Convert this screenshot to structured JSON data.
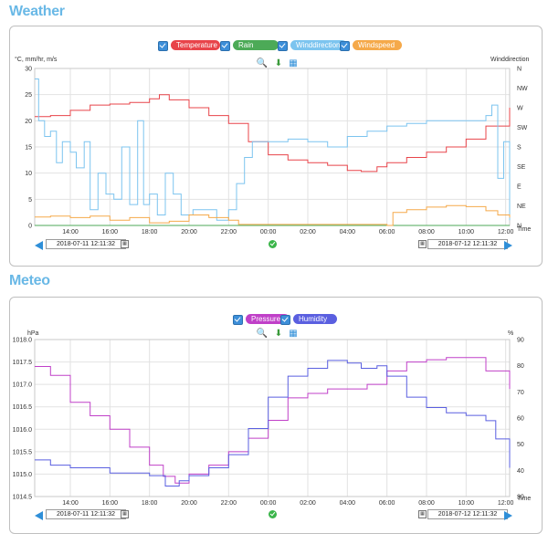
{
  "weather": {
    "section_title": "Weather",
    "legend": [
      {
        "label": "Temperature",
        "color": "#e8444a"
      },
      {
        "label": "Rain",
        "color": "#4caa57"
      },
      {
        "label": "Winddirection",
        "color": "#7cc4ef"
      },
      {
        "label": "Windspeed",
        "color": "#f5a94a"
      }
    ],
    "left_axis_caption": "°C, mm/hr, m/s",
    "right_axis_caption": "Winddirection",
    "x_axis_caption": "Time",
    "start_date": "2018-07-11 12:11:32",
    "end_date": "2018-07-12 12:11:32"
  },
  "meteo": {
    "section_title": "Meteo",
    "legend": [
      {
        "label": "Pressure",
        "color": "#c040c8"
      },
      {
        "label": "Humidity",
        "color": "#5a5fe0"
      }
    ],
    "left_axis_caption": "hPa",
    "right_axis_caption": "%",
    "x_axis_caption": "Time",
    "start_date": "2018-07-11 12:11:32",
    "end_date": "2018-07-12 12:11:32"
  },
  "chart_data": [
    {
      "type": "line",
      "title": "Weather",
      "xlabel": "Time",
      "ylabel": "°C, mm/hr, m/s",
      "y2label": "Winddirection",
      "x_ticks": [
        "14:00",
        "16:00",
        "18:00",
        "20:00",
        "22:00",
        "00:00",
        "02:00",
        "04:00",
        "06:00",
        "08:00",
        "10:00",
        "12:00"
      ],
      "x_range_hours": [
        12.2,
        36.2
      ],
      "ylim": [
        0,
        30
      ],
      "y_ticks": [
        0,
        5,
        10,
        15,
        20,
        25,
        30
      ],
      "y2_ticks": [
        "N",
        "NE",
        "E",
        "SE",
        "S",
        "SW",
        "W",
        "NW",
        "N"
      ],
      "grid": true,
      "legend_position": "top-center",
      "series": [
        {
          "name": "Temperature",
          "color": "#e8444a",
          "axis": "left",
          "points": [
            [
              12.2,
              20.8
            ],
            [
              13,
              21
            ],
            [
              14,
              22
            ],
            [
              15,
              23
            ],
            [
              16,
              23.2
            ],
            [
              17,
              23.5
            ],
            [
              18,
              24.2
            ],
            [
              18.5,
              25
            ],
            [
              19,
              24
            ],
            [
              20,
              22.5
            ],
            [
              21,
              21
            ],
            [
              22,
              19.5
            ],
            [
              23,
              16
            ],
            [
              24,
              13.5
            ],
            [
              25,
              12.5
            ],
            [
              26,
              12
            ],
            [
              27,
              11.5
            ],
            [
              28,
              10.5
            ],
            [
              28.7,
              10.3
            ],
            [
              29.5,
              11.2
            ],
            [
              30,
              12
            ],
            [
              31,
              13
            ],
            [
              32,
              14
            ],
            [
              33,
              15
            ],
            [
              34,
              16.5
            ],
            [
              35,
              19
            ],
            [
              36.2,
              22.5
            ]
          ]
        },
        {
          "name": "Rain",
          "color": "#4caa57",
          "axis": "left",
          "points": [
            [
              12.2,
              0
            ],
            [
              36.2,
              0
            ]
          ]
        },
        {
          "name": "Winddirection",
          "color": "#7cc4ef",
          "axis": "left",
          "points": [
            [
              12.2,
              28
            ],
            [
              12.4,
              20
            ],
            [
              12.7,
              17
            ],
            [
              13,
              18
            ],
            [
              13.3,
              12
            ],
            [
              13.6,
              16
            ],
            [
              14,
              14
            ],
            [
              14.3,
              11
            ],
            [
              14.7,
              16
            ],
            [
              15,
              3
            ],
            [
              15.4,
              10
            ],
            [
              15.8,
              6
            ],
            [
              16.2,
              5
            ],
            [
              16.6,
              15
            ],
            [
              17,
              4
            ],
            [
              17.4,
              20
            ],
            [
              17.7,
              4
            ],
            [
              18,
              6
            ],
            [
              18.4,
              2
            ],
            [
              18.8,
              10
            ],
            [
              19.2,
              6
            ],
            [
              19.6,
              2
            ],
            [
              20.2,
              3
            ],
            [
              21,
              3
            ],
            [
              21.4,
              1
            ],
            [
              22,
              3
            ],
            [
              22.4,
              8
            ],
            [
              22.8,
              13
            ],
            [
              23.2,
              16
            ],
            [
              24,
              16
            ],
            [
              25,
              16.5
            ],
            [
              26,
              16
            ],
            [
              27,
              15
            ],
            [
              28,
              17
            ],
            [
              29,
              18
            ],
            [
              30,
              19
            ],
            [
              31,
              19.5
            ],
            [
              32,
              20
            ],
            [
              33,
              20
            ],
            [
              34,
              20
            ],
            [
              35,
              21
            ],
            [
              35.3,
              23
            ],
            [
              35.6,
              9
            ],
            [
              35.9,
              16
            ],
            [
              36.2,
              1
            ]
          ]
        },
        {
          "name": "Windspeed",
          "color": "#f5a94a",
          "axis": "left",
          "points": [
            [
              12.2,
              1.6
            ],
            [
              13,
              1.8
            ],
            [
              14,
              1.5
            ],
            [
              15,
              1.8
            ],
            [
              16,
              1
            ],
            [
              17,
              1.5
            ],
            [
              18,
              0.5
            ],
            [
              19,
              0.8
            ],
            [
              20,
              2
            ],
            [
              21,
              1.5
            ],
            [
              22,
              1
            ],
            [
              22.5,
              0.2
            ],
            [
              30,
              0
            ],
            [
              30.3,
              2.5
            ],
            [
              31,
              3
            ],
            [
              32,
              3.5
            ],
            [
              33,
              3.8
            ],
            [
              34,
              3.6
            ],
            [
              35,
              2.8
            ],
            [
              35.6,
              2
            ],
            [
              36.2,
              1.5
            ]
          ]
        }
      ]
    },
    {
      "type": "line",
      "title": "Meteo",
      "xlabel": "Time",
      "ylabel": "hPa",
      "y2label": "%",
      "x_ticks": [
        "14:00",
        "16:00",
        "18:00",
        "20:00",
        "22:00",
        "00:00",
        "02:00",
        "04:00",
        "06:00",
        "08:00",
        "10:00",
        "12:00"
      ],
      "x_range_hours": [
        12.2,
        36.2
      ],
      "ylim": [
        1014.5,
        1018.0
      ],
      "y_ticks": [
        1014.5,
        1015.0,
        1015.5,
        1016.0,
        1016.5,
        1017.0,
        1017.5,
        1018.0
      ],
      "y2lim": [
        30,
        90
      ],
      "y2_ticks": [
        30,
        40,
        50,
        60,
        70,
        80,
        90
      ],
      "grid": true,
      "legend_position": "top-center",
      "series": [
        {
          "name": "Pressure",
          "color": "#c040c8",
          "axis": "left",
          "points": [
            [
              12.2,
              1017.4
            ],
            [
              13,
              1017.2
            ],
            [
              14,
              1016.6
            ],
            [
              15,
              1016.3
            ],
            [
              16,
              1016.0
            ],
            [
              17,
              1015.6
            ],
            [
              18,
              1015.2
            ],
            [
              18.7,
              1014.95
            ],
            [
              19.3,
              1014.8
            ],
            [
              20,
              1015.0
            ],
            [
              21,
              1015.2
            ],
            [
              22,
              1015.5
            ],
            [
              23,
              1015.8
            ],
            [
              24,
              1016.2
            ],
            [
              25,
              1016.7
            ],
            [
              26,
              1016.8
            ],
            [
              27,
              1016.9
            ],
            [
              28,
              1016.9
            ],
            [
              29,
              1017.0
            ],
            [
              30,
              1017.3
            ],
            [
              31,
              1017.5
            ],
            [
              32,
              1017.55
            ],
            [
              33,
              1017.6
            ],
            [
              34,
              1017.6
            ],
            [
              35,
              1017.3
            ],
            [
              36.2,
              1016.9
            ]
          ]
        },
        {
          "name": "Humidity",
          "color": "#5a5fe0",
          "axis": "right",
          "points": [
            [
              12.2,
              44
            ],
            [
              13,
              42
            ],
            [
              14,
              41
            ],
            [
              15,
              41
            ],
            [
              16,
              39
            ],
            [
              17,
              39
            ],
            [
              18,
              38
            ],
            [
              18.8,
              34
            ],
            [
              19.5,
              36
            ],
            [
              20,
              38
            ],
            [
              21,
              41
            ],
            [
              22,
              46
            ],
            [
              23,
              56
            ],
            [
              24,
              68
            ],
            [
              25,
              76
            ],
            [
              26,
              79
            ],
            [
              27,
              82
            ],
            [
              28,
              81
            ],
            [
              28.7,
              79
            ],
            [
              29.5,
              80
            ],
            [
              30,
              76
            ],
            [
              31,
              68
            ],
            [
              32,
              64
            ],
            [
              33,
              62
            ],
            [
              34,
              61
            ],
            [
              35,
              59
            ],
            [
              35.5,
              52
            ],
            [
              36.2,
              41
            ]
          ]
        }
      ]
    }
  ]
}
